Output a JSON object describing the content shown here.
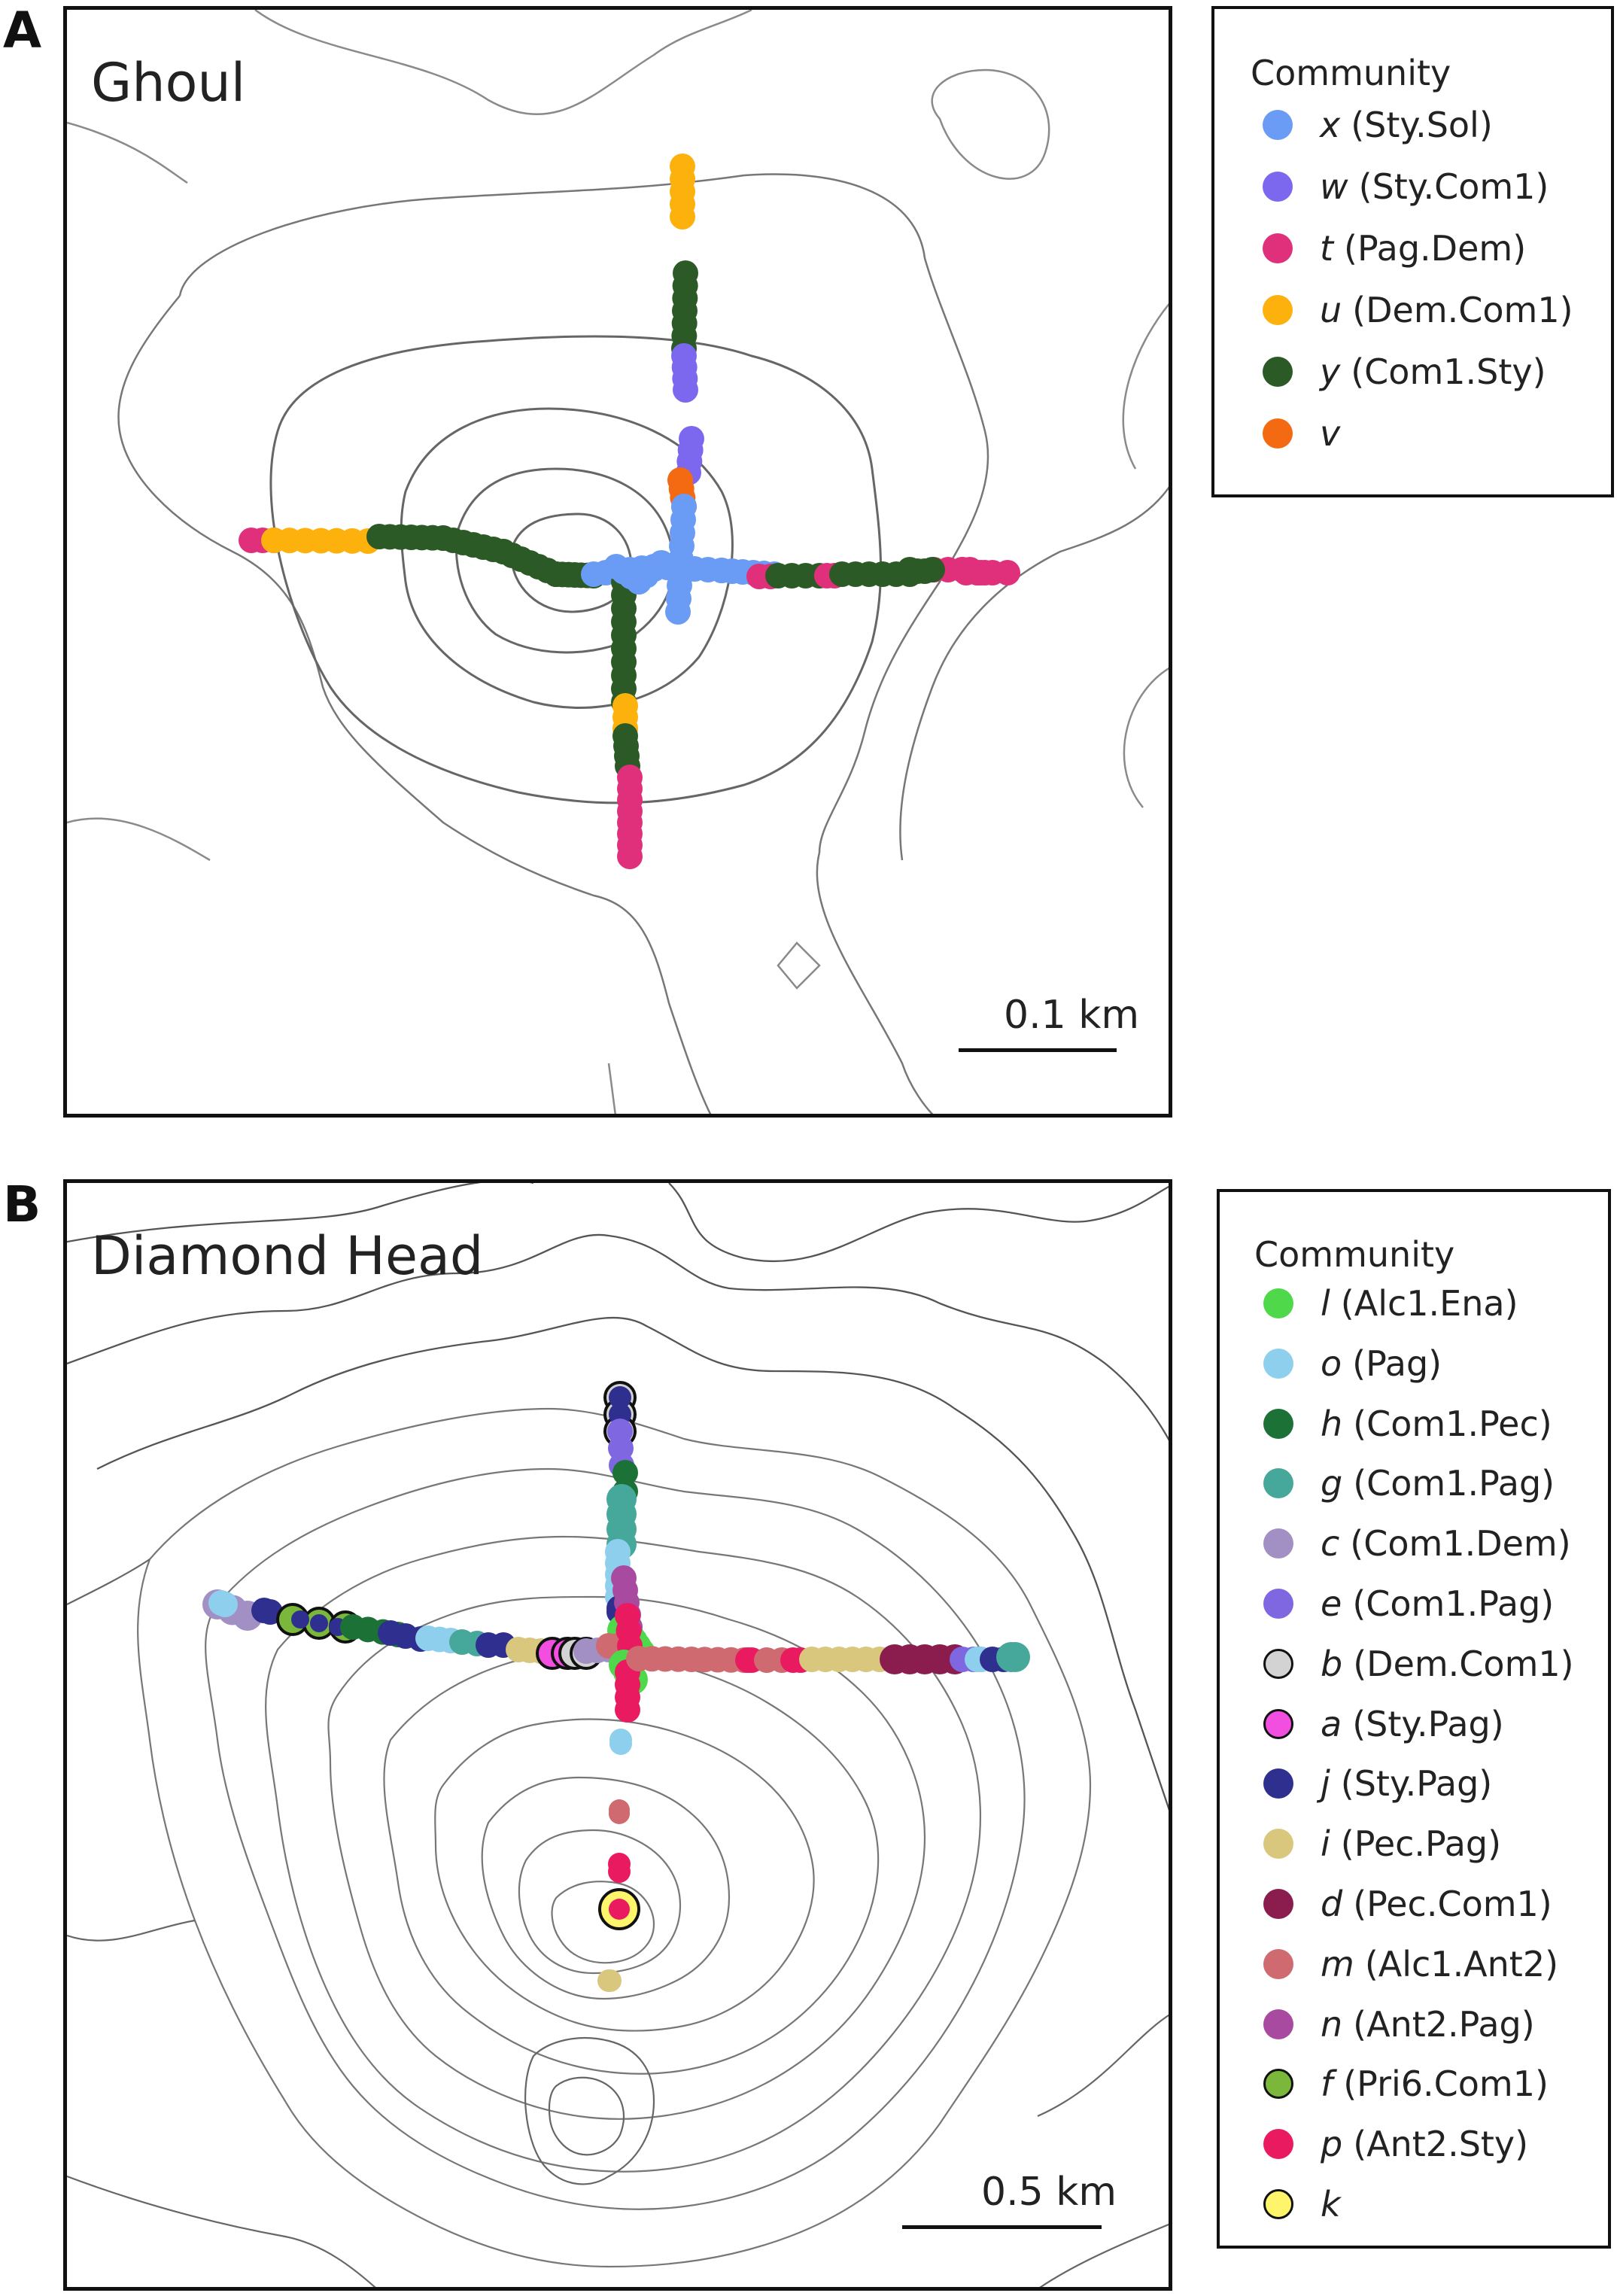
{
  "panels": [
    {
      "letter": "A",
      "title": "Ghoul",
      "scale_label": "0.1 km",
      "legend_title": "Community",
      "legend": [
        {
          "key": "x",
          "name": "(Sty.Sol)",
          "color": "#6a9bf5",
          "outline": false
        },
        {
          "key": "w",
          "name": "(Sty.Com1)",
          "color": "#7b68ee",
          "outline": false
        },
        {
          "key": "t",
          "name": "(Pag.Dem)",
          "color": "#e0307c",
          "outline": false
        },
        {
          "key": "u",
          "name": "(Dem.Com1)",
          "color": "#fdb10c",
          "outline": false
        },
        {
          "key": "y",
          "name": "(Com1.Sty)",
          "color": "#2c5a26",
          "outline": false
        },
        {
          "key": "v",
          "name": "",
          "color": "#f46a12",
          "outline": false
        }
      ]
    },
    {
      "letter": "B",
      "title": "Diamond Head",
      "scale_label": "0.5 km",
      "legend_title": "Community",
      "legend": [
        {
          "key": "l",
          "name": "(Alc1.Ena)",
          "color": "#4ed84a",
          "outline": false
        },
        {
          "key": "o",
          "name": "(Pag)",
          "color": "#8fcfee",
          "outline": false
        },
        {
          "key": "h",
          "name": "(Com1.Pec)",
          "color": "#1c7236",
          "outline": false
        },
        {
          "key": "g",
          "name": "(Com1.Pag)",
          "color": "#45a89a",
          "outline": false
        },
        {
          "key": "c",
          "name": "(Com1.Dem)",
          "color": "#a28fc4",
          "outline": false
        },
        {
          "key": "e",
          "name": "(Com1.Pag)",
          "color": "#7e67e0",
          "outline": false
        },
        {
          "key": "b",
          "name": "(Dem.Com1)",
          "color": "#d3d3d3",
          "outline": true
        },
        {
          "key": "a",
          "name": "(Sty.Pag)",
          "color": "#f24fe0",
          "outline": true
        },
        {
          "key": "j",
          "name": "(Sty.Pag)",
          "color": "#2e2f8e",
          "outline": false
        },
        {
          "key": "i",
          "name": "(Pec.Pag)",
          "color": "#d9c77e",
          "outline": false
        },
        {
          "key": "d",
          "name": "(Pec.Com1)",
          "color": "#8b1d4e",
          "outline": false
        },
        {
          "key": "m",
          "name": "(Alc1.Ant2)",
          "color": "#cf6a71",
          "outline": false
        },
        {
          "key": "n",
          "name": "(Ant2.Pag)",
          "color": "#a74aa0",
          "outline": false
        },
        {
          "key": "f",
          "name": "(Pri6.Com1)",
          "color": "#7ab73b",
          "outline": true
        },
        {
          "key": "p",
          "name": "(Ant2.Sty)",
          "color": "#ea1a61",
          "outline": false
        },
        {
          "key": "k",
          "name": "",
          "color": "#fff56a",
          "outline": true
        }
      ]
    }
  ]
}
